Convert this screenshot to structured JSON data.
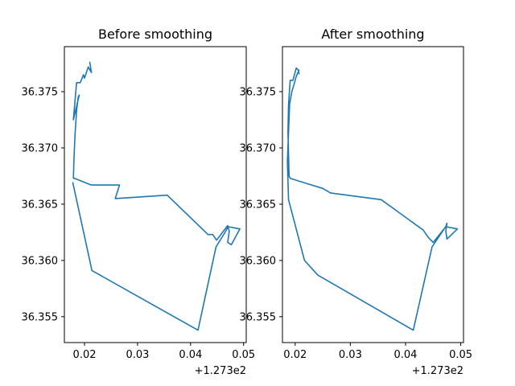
{
  "chart_data": [
    {
      "type": "line",
      "title": "Before smoothing",
      "x_offset_label": "+1.273e2",
      "xlim": [
        0.0162,
        0.0505
      ],
      "ylim": [
        36.3527,
        36.379
      ],
      "xticks": [
        0.02,
        0.03,
        0.04,
        0.05
      ],
      "xtick_labels": [
        "0.02",
        "0.03",
        "0.04",
        "0.05"
      ],
      "yticks": [
        36.355,
        36.36,
        36.365,
        36.37,
        36.375
      ],
      "ytick_labels": [
        "36.355",
        "36.360",
        "36.365",
        "36.370",
        "36.375"
      ],
      "grid": false,
      "color": "#1f77b4",
      "x": [
        0.021,
        0.0213,
        0.0207,
        0.02,
        0.0198,
        0.0192,
        0.0185,
        0.0179,
        0.019,
        0.0188,
        0.0185,
        0.0182,
        0.018,
        0.0179,
        0.0181,
        0.0213,
        0.0266,
        0.0258,
        0.0356,
        0.0433,
        0.0442,
        0.0449,
        0.047,
        0.0473,
        0.047,
        0.0477,
        0.0493,
        0.0471,
        0.0465,
        0.0448,
        0.0414,
        0.0214,
        0.0178
      ],
      "y": [
        36.3776,
        36.3767,
        36.3772,
        36.3762,
        36.3765,
        36.3758,
        36.3758,
        36.3725,
        36.3747,
        36.3745,
        36.3733,
        36.3711,
        36.3689,
        36.3673,
        36.3673,
        36.3667,
        36.3667,
        36.3655,
        36.3658,
        36.3623,
        36.3623,
        36.3618,
        36.3631,
        36.3626,
        36.3616,
        36.3614,
        36.3628,
        36.363,
        36.3625,
        36.3612,
        36.3538,
        36.3591,
        36.3669
      ]
    },
    {
      "type": "line",
      "title": "After smoothing",
      "x_offset_label": "+1.273e2",
      "xlim": [
        0.0177,
        0.0505
      ],
      "ylim": [
        36.3527,
        36.379
      ],
      "xticks": [
        0.02,
        0.03,
        0.04,
        0.05
      ],
      "xtick_labels": [
        "0.02",
        "0.03",
        "0.04",
        "0.05"
      ],
      "yticks": [
        36.355,
        36.36,
        36.365,
        36.37,
        36.375
      ],
      "ytick_labels": [
        "36.355",
        "36.360",
        "36.365",
        "36.370",
        "36.375"
      ],
      "grid": false,
      "color": "#1f77b4",
      "x": [
        0.0207,
        0.0206,
        0.0202,
        0.0196,
        0.0191,
        0.0188,
        0.0187,
        0.0189,
        0.0191,
        0.021,
        0.025,
        0.0264,
        0.0356,
        0.0432,
        0.0442,
        0.045,
        0.0473,
        0.0475,
        0.0473,
        0.0475,
        0.0494,
        0.0473,
        0.047,
        0.0448,
        0.0414,
        0.0241,
        0.0217,
        0.0188,
        0.0186,
        0.019,
        0.0194,
        0.0199,
        0.0201,
        0.0204,
        0.0207
      ],
      "y": [
        36.3766,
        36.3769,
        36.3771,
        36.376,
        36.376,
        36.3738,
        36.3714,
        36.3675,
        36.3673,
        36.367,
        36.3664,
        36.366,
        36.3654,
        36.3627,
        36.362,
        36.3616,
        36.363,
        36.3633,
        36.3626,
        36.3619,
        36.3628,
        36.363,
        36.3628,
        36.3612,
        36.3538,
        36.3587,
        36.36,
        36.3654,
        36.3688,
        36.3739,
        36.375,
        36.3758,
        36.3762,
        36.3766,
        36.3769
      ]
    }
  ]
}
